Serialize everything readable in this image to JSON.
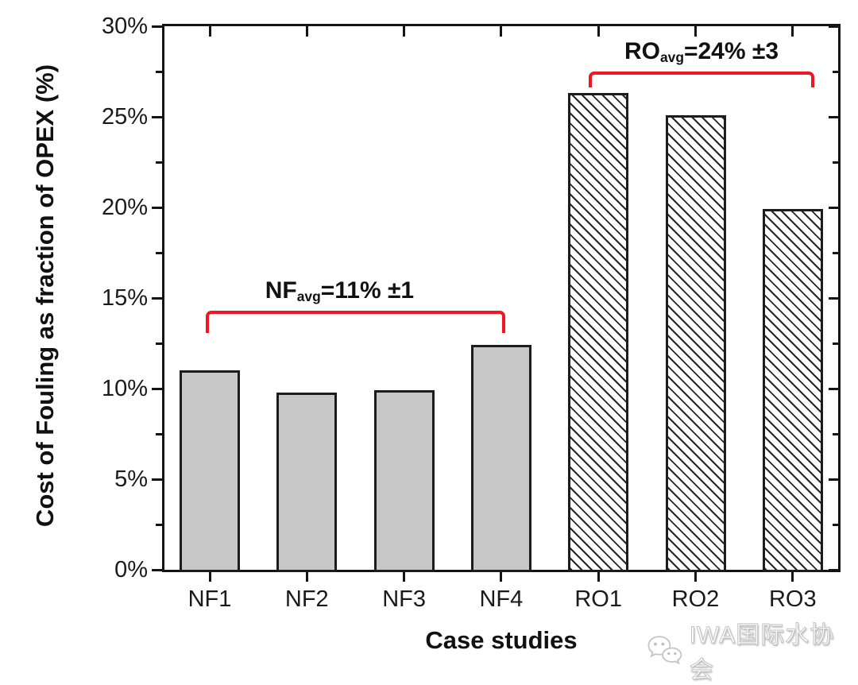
{
  "chart_data": {
    "type": "bar",
    "xlabel": "Case studies",
    "ylabel": "Cost of Fouling as fraction of OPEX (%)",
    "categories": [
      "NF1",
      "NF2",
      "NF3",
      "NF4",
      "RO1",
      "RO2",
      "RO3"
    ],
    "values": [
      11.0,
      9.8,
      9.9,
      12.4,
      26.3,
      25.1,
      19.9
    ],
    "bar_styles": [
      "gray",
      "gray",
      "gray",
      "gray",
      "hatched",
      "hatched",
      "hatched"
    ],
    "ylim": [
      0,
      30
    ],
    "y_major_ticks_pct": [
      0,
      5,
      10,
      15,
      20,
      25,
      30
    ],
    "y_major_tick_labels": [
      "0%",
      "5%",
      "10%",
      "15%",
      "20%",
      "25%",
      "30%"
    ],
    "y_minor_ticks_pct": [
      2.5,
      7.5,
      12.5,
      17.5,
      22.5,
      27.5
    ],
    "grid": false,
    "annotations": [
      {
        "prefix": "NF",
        "sub": "avg",
        "rest": "=11% ±1",
        "span_from": "NF1",
        "span_to": "NF4",
        "bracket_y_pct": 14.3
      },
      {
        "prefix": "RO",
        "sub": "avg",
        "rest": "=24% ±3",
        "span_from": "RO1",
        "span_to": "RO3",
        "bracket_y_pct": 27.5
      }
    ]
  },
  "watermark": {
    "icon": "wechat-icon",
    "text": "IWA国际水协会"
  },
  "colors": {
    "bar_gray": "#c7c7c7",
    "bar_border": "#1c1c1c",
    "axis": "#141414",
    "annotation_red": "#f01622",
    "watermark_gray": "#c4c4c4"
  }
}
